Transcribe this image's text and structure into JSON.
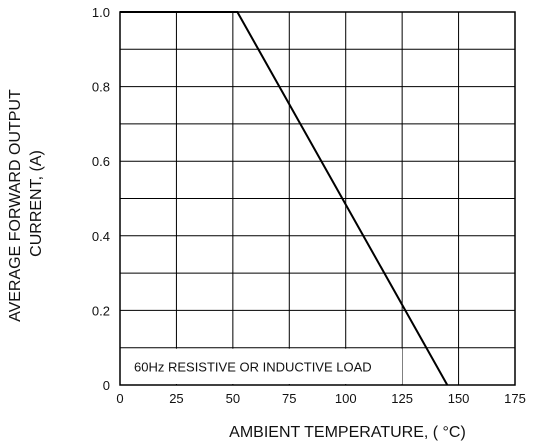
{
  "chart_data": {
    "type": "line",
    "title": "",
    "xlabel": "AMBIENT TEMPERATURE, ( °C)",
    "ylabel_lines": [
      "AVERAGE FORWARD OUTPUT",
      "CURRENT, (A)"
    ],
    "xlim": [
      0,
      175
    ],
    "ylim": [
      0,
      1.0
    ],
    "x_ticks": [
      0,
      25,
      50,
      75,
      100,
      125,
      150,
      175
    ],
    "x_tick_labels": [
      "0",
      "25",
      "50",
      "75",
      "100",
      "125",
      "150",
      "175"
    ],
    "y_ticks": [
      0,
      0.2,
      0.4,
      0.6,
      0.8,
      1.0
    ],
    "y_tick_labels": [
      "0",
      "0.2",
      "0.4",
      "0.6",
      "0.8",
      "1.0"
    ],
    "grid": true,
    "grid_x_step": 25,
    "grid_y_step": 0.1,
    "annotation": "60Hz RESISTIVE OR INDUCTIVE LOAD",
    "series": [
      {
        "x": [
          0,
          52,
          145
        ],
        "y": [
          1.0,
          1.0,
          0
        ]
      }
    ]
  }
}
